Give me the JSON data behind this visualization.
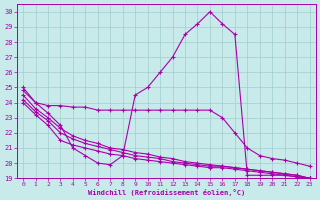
{
  "xlabel": "Windchill (Refroidissement éolien,°C)",
  "xlim": [
    -0.5,
    23.5
  ],
  "ylim": [
    19,
    30.5
  ],
  "yticks": [
    19,
    20,
    21,
    22,
    23,
    24,
    25,
    26,
    27,
    28,
    29,
    30
  ],
  "xticks": [
    0,
    1,
    2,
    3,
    4,
    5,
    6,
    7,
    8,
    9,
    10,
    11,
    12,
    13,
    14,
    15,
    16,
    17,
    18,
    19,
    20,
    21,
    22,
    23
  ],
  "background_color": "#c8eaea",
  "line_color": "#aa00aa",
  "grid_color": "#a0cccc",
  "lines": [
    {
      "x": [
        0,
        1,
        2,
        3,
        4,
        5,
        6,
        7,
        8,
        9,
        10,
        11,
        12,
        13,
        14,
        15,
        16,
        17,
        18,
        19,
        20,
        21,
        22,
        23
      ],
      "y": [
        25.0,
        24.0,
        23.3,
        22.5,
        21.0,
        20.5,
        20.0,
        19.9,
        20.5,
        24.5,
        25.0,
        26.0,
        27.0,
        28.5,
        29.2,
        30.0,
        29.2,
        28.5,
        19.2,
        19.2,
        19.2,
        19.2,
        19.1,
        19.0
      ]
    },
    {
      "x": [
        0,
        1,
        2,
        3,
        4,
        5,
        6,
        7,
        8,
        9,
        10,
        11,
        12,
        13,
        14,
        15,
        16,
        17,
        18,
        19,
        20,
        21,
        22,
        23
      ],
      "y": [
        24.8,
        24.0,
        23.8,
        23.8,
        23.7,
        23.7,
        23.5,
        23.5,
        23.5,
        23.5,
        23.5,
        23.5,
        23.5,
        23.5,
        23.5,
        23.5,
        23.0,
        22.0,
        21.0,
        20.5,
        20.3,
        20.2,
        20.0,
        19.8
      ]
    },
    {
      "x": [
        0,
        1,
        2,
        3,
        4,
        5,
        6,
        7,
        8,
        9,
        10,
        11,
        12,
        13,
        14,
        15,
        16,
        17,
        18,
        19,
        20,
        21,
        22,
        23
      ],
      "y": [
        24.0,
        23.2,
        22.5,
        21.5,
        21.2,
        21.0,
        20.8,
        20.6,
        20.5,
        20.3,
        20.2,
        20.1,
        20.0,
        19.9,
        19.8,
        19.7,
        19.7,
        19.6,
        19.5,
        19.4,
        19.3,
        19.2,
        19.1,
        19.0
      ]
    },
    {
      "x": [
        0,
        1,
        2,
        3,
        4,
        5,
        6,
        7,
        8,
        9,
        10,
        11,
        12,
        13,
        14,
        15,
        16,
        17,
        18,
        19,
        20,
        21,
        22,
        23
      ],
      "y": [
        24.2,
        23.4,
        22.8,
        22.0,
        21.6,
        21.3,
        21.1,
        20.9,
        20.7,
        20.5,
        20.4,
        20.3,
        20.1,
        20.0,
        19.9,
        19.8,
        19.8,
        19.7,
        19.6,
        19.5,
        19.4,
        19.3,
        19.2,
        19.0
      ]
    },
    {
      "x": [
        0,
        1,
        2,
        3,
        4,
        5,
        6,
        7,
        8,
        9,
        10,
        11,
        12,
        13,
        14,
        15,
        16,
        17,
        18,
        19,
        20,
        21,
        22,
        23
      ],
      "y": [
        24.5,
        23.6,
        23.0,
        22.3,
        21.8,
        21.5,
        21.3,
        21.0,
        20.9,
        20.7,
        20.6,
        20.4,
        20.3,
        20.1,
        20.0,
        19.9,
        19.8,
        19.7,
        19.6,
        19.5,
        19.4,
        19.3,
        19.2,
        19.0
      ]
    }
  ]
}
